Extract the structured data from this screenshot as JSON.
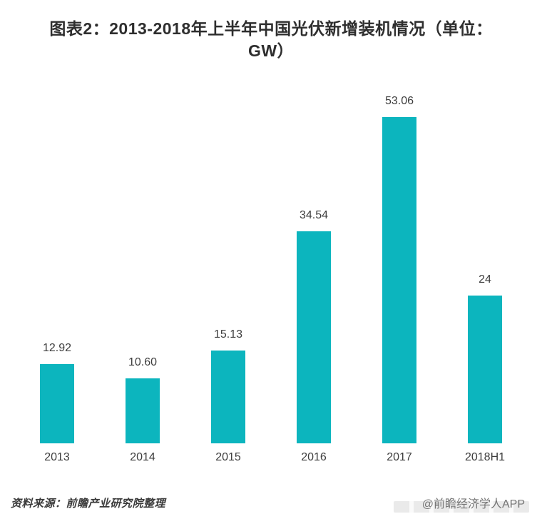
{
  "title": {
    "line1": "图表2：2013-2018年上半年中国光伏新增装机情况（单位：",
    "line2": "GW）"
  },
  "chart_data": {
    "type": "bar",
    "title": "图表2：2013-2018年上半年中国光伏新增装机情况（单位：GW）",
    "categories": [
      "2013",
      "2014",
      "2015",
      "2016",
      "2017",
      "2018H1"
    ],
    "values": [
      12.92,
      10.6,
      15.13,
      34.54,
      53.06,
      24
    ],
    "value_labels": [
      "12.92",
      "10.60",
      "15.13",
      "34.54",
      "53.06",
      "24"
    ],
    "xlabel": "",
    "ylabel": "",
    "ylim": [
      0,
      55
    ],
    "grid": false,
    "legend": false,
    "bar_color": "#0cb5be"
  },
  "footer": {
    "source": "资料来源：前瞻产业研究院整理",
    "credit": "@前瞻经济学人APP"
  },
  "colors": {
    "bar": "#0cb5be",
    "title_text": "#2e2e2e",
    "label_text": "#3d3d3d",
    "source_text": "#3a3a3a",
    "credit_text": "#757575"
  }
}
